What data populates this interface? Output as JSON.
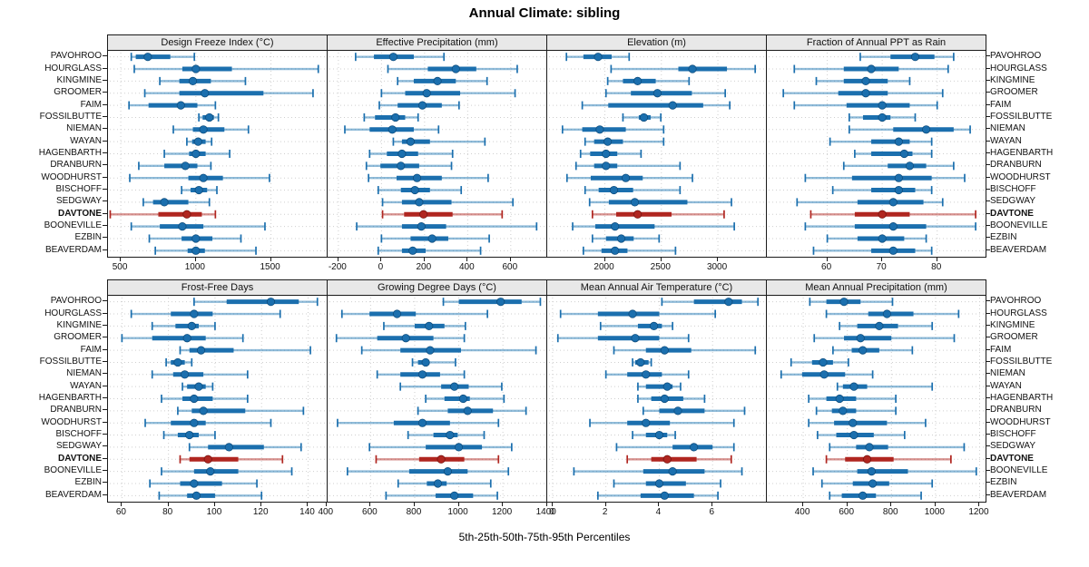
{
  "title": "Annual Climate: sibling",
  "x_axis_title": "5th-25th-50th-75th-95th Percentiles",
  "highlight_station": "DAVTONE",
  "colors": {
    "blue": "#1B6FAE",
    "blue_light": "rgba(31,119,180,0.5)",
    "blue_dark": "#0E4D7E",
    "red": "#B02620",
    "red_light": "rgba(176,38,32,0.5)",
    "red_dark": "#7A1410",
    "header_bg": "#E8E8E8",
    "grid": "#CFCFCF",
    "border": "#1A1A1A"
  },
  "chart_data": {
    "type": "dotplot-percentiles",
    "percentiles": [
      5,
      25,
      50,
      75,
      95
    ],
    "stations": [
      "PAVOHROO",
      "HOURGLASS",
      "KINGMINE",
      "GROOMER",
      "FAIM",
      "FOSSILBUTTE",
      "NIEMAN",
      "WAYAN",
      "HAGENBARTH",
      "DRANBURN",
      "WOODHURST",
      "BISCHOFF",
      "SEDGWAY",
      "DAVTONE",
      "BOONEVILLE",
      "EZBIN",
      "BEAVERDAM"
    ],
    "legend_note": "DAVTONE highlighted in red",
    "panels": [
      {
        "title": "Design Freeze Index (°C)",
        "xlim": [
          415,
          1871
        ],
        "ticks": [
          500,
          1000,
          1500
        ],
        "rows": [
          [
            570,
            600,
            680,
            830,
            990
          ],
          [
            590,
            910,
            1000,
            1240,
            1815
          ],
          [
            760,
            890,
            980,
            1100,
            1330
          ],
          [
            660,
            890,
            1060,
            1450,
            1780
          ],
          [
            555,
            685,
            900,
            1010,
            1130
          ],
          [
            1020,
            1045,
            1090,
            1120,
            1150
          ],
          [
            850,
            980,
            1050,
            1190,
            1350
          ],
          [
            940,
            975,
            1015,
            1065,
            1105
          ],
          [
            790,
            955,
            1000,
            1065,
            1225
          ],
          [
            620,
            790,
            930,
            1010,
            1100
          ],
          [
            560,
            950,
            1050,
            1180,
            1490
          ],
          [
            905,
            965,
            1020,
            1075,
            1140
          ],
          [
            650,
            715,
            790,
            950,
            1090
          ],
          [
            430,
            750,
            940,
            1040,
            1130
          ],
          [
            570,
            760,
            910,
            1050,
            1460
          ],
          [
            690,
            905,
            1000,
            1110,
            1300
          ],
          [
            730,
            945,
            1000,
            1060,
            1400
          ]
        ]
      },
      {
        "title": "Effective Precipitation (mm)",
        "xlim": [
          -250,
          765
        ],
        "ticks": [
          -200,
          0,
          200,
          400,
          600
        ],
        "rows": [
          [
            -120,
            -35,
            55,
            150,
            290
          ],
          [
            30,
            215,
            345,
            440,
            630
          ],
          [
            75,
            150,
            260,
            345,
            490
          ],
          [
            0,
            110,
            210,
            365,
            620
          ],
          [
            -10,
            75,
            190,
            280,
            360
          ],
          [
            -80,
            -30,
            65,
            110,
            170
          ],
          [
            -170,
            -55,
            50,
            150,
            265
          ],
          [
            55,
            95,
            135,
            225,
            480
          ],
          [
            -55,
            25,
            95,
            170,
            330
          ],
          [
            -70,
            -5,
            90,
            175,
            325
          ],
          [
            -60,
            70,
            165,
            280,
            495
          ],
          [
            -15,
            90,
            155,
            225,
            370
          ],
          [
            5,
            95,
            175,
            325,
            610
          ],
          [
            5,
            105,
            195,
            330,
            560
          ],
          [
            -115,
            95,
            185,
            300,
            720
          ],
          [
            0,
            135,
            235,
            310,
            500
          ],
          [
            -15,
            95,
            145,
            205,
            460
          ]
        ]
      },
      {
        "title": "Elevation (m)",
        "xlim": [
          1490,
          3425
        ],
        "ticks": [
          2000,
          2500,
          3000
        ],
        "rows": [
          [
            1660,
            1810,
            1940,
            2060,
            2215
          ],
          [
            2055,
            2650,
            2775,
            3080,
            3330
          ],
          [
            2025,
            2160,
            2290,
            2450,
            2745
          ],
          [
            2010,
            2230,
            2465,
            2770,
            3065
          ],
          [
            1800,
            2030,
            2600,
            2870,
            3105
          ],
          [
            2160,
            2300,
            2345,
            2405,
            2495
          ],
          [
            1625,
            1800,
            1955,
            2185,
            2520
          ],
          [
            1825,
            1905,
            2025,
            2160,
            2520
          ],
          [
            1785,
            1870,
            2010,
            2110,
            2320
          ],
          [
            1745,
            1905,
            2010,
            2110,
            2665
          ],
          [
            1665,
            1875,
            2185,
            2335,
            2775
          ],
          [
            1825,
            1945,
            2080,
            2250,
            2665
          ],
          [
            1865,
            2035,
            2265,
            2730,
            3120
          ],
          [
            1890,
            2100,
            2290,
            2590,
            3055
          ],
          [
            1715,
            1915,
            2090,
            2440,
            3145
          ],
          [
            1890,
            2010,
            2145,
            2255,
            2480
          ],
          [
            1810,
            1970,
            2090,
            2200,
            2625
          ]
        ]
      },
      {
        "title": "Fraction of Annual PPT as Rain",
        "xlim": [
          49,
          88.8
        ],
        "ticks": [
          60,
          70,
          80
        ],
        "rows": [
          [
            66,
            71.5,
            76,
            79.5,
            83
          ],
          [
            54,
            63,
            68,
            73,
            82
          ],
          [
            58,
            63,
            67,
            71,
            75
          ],
          [
            52,
            62,
            67,
            71,
            81
          ],
          [
            54,
            63.5,
            70,
            75,
            80
          ],
          [
            64,
            66.5,
            70,
            71.5,
            76
          ],
          [
            64,
            72,
            78,
            83,
            86
          ],
          [
            60.5,
            68,
            73,
            75,
            79
          ],
          [
            65,
            68,
            74,
            75.5,
            79
          ],
          [
            63,
            71,
            75,
            78,
            83
          ],
          [
            56,
            64.5,
            73,
            79,
            85
          ],
          [
            61,
            68,
            73,
            76,
            79
          ],
          [
            54.5,
            65.5,
            72,
            77.5,
            81
          ],
          [
            57,
            65,
            70,
            75,
            87
          ],
          [
            56,
            65,
            72,
            78,
            87
          ],
          [
            60,
            65.5,
            70,
            74,
            78
          ],
          [
            57.5,
            68,
            72,
            76,
            79
          ]
        ]
      },
      {
        "title": "Frost-Free Days",
        "xlim": [
          54,
          148
        ],
        "ticks": [
          60,
          80,
          100,
          120,
          140
        ],
        "rows": [
          [
            91,
            105,
            124,
            136,
            144
          ],
          [
            64,
            81,
            91,
            99,
            128
          ],
          [
            73,
            83,
            90,
            93,
            100
          ],
          [
            60,
            73,
            88,
            96,
            112
          ],
          [
            85,
            89,
            94,
            108,
            141
          ],
          [
            79,
            81,
            84,
            87,
            90
          ],
          [
            73,
            82,
            87,
            95,
            114
          ],
          [
            86,
            88,
            93,
            96,
            99
          ],
          [
            77,
            86,
            91,
            99,
            114
          ],
          [
            84,
            90,
            95,
            113,
            138
          ],
          [
            70,
            81,
            91,
            96,
            124
          ],
          [
            78,
            84,
            89,
            93,
            100
          ],
          [
            89,
            97,
            106,
            121,
            137
          ],
          [
            85,
            89,
            97,
            110,
            129
          ],
          [
            77,
            91,
            98,
            110,
            133
          ],
          [
            72,
            85,
            91,
            103,
            118
          ],
          [
            76,
            88,
            92,
            100,
            120
          ]
        ]
      },
      {
        "title": "Growing Degree Days (°C)",
        "xlim": [
          405,
          1397
        ],
        "ticks": [
          400,
          600,
          800,
          1000,
          1200,
          1400
        ],
        "rows": [
          [
            930,
            1000,
            1190,
            1285,
            1370
          ],
          [
            470,
            595,
            720,
            805,
            1130
          ],
          [
            660,
            800,
            865,
            935,
            1030
          ],
          [
            445,
            630,
            760,
            885,
            1025
          ],
          [
            560,
            735,
            870,
            1010,
            1350
          ],
          [
            790,
            815,
            850,
            865,
            985
          ],
          [
            630,
            735,
            835,
            915,
            1025
          ],
          [
            735,
            920,
            980,
            1045,
            1195
          ],
          [
            850,
            935,
            1020,
            1050,
            1205
          ],
          [
            815,
            950,
            1040,
            1155,
            1305
          ],
          [
            450,
            705,
            835,
            960,
            1180
          ],
          [
            770,
            885,
            960,
            995,
            1115
          ],
          [
            595,
            850,
            1000,
            1105,
            1240
          ],
          [
            625,
            820,
            920,
            1025,
            1180
          ],
          [
            495,
            775,
            950,
            1040,
            1225
          ],
          [
            725,
            855,
            905,
            945,
            1145
          ],
          [
            670,
            895,
            980,
            1065,
            1175
          ]
        ]
      },
      {
        "title": "Mean Annual Air Temperature (°C)",
        "xlim": [
          -0.2,
          8.0
        ],
        "ticks": [
          0,
          2,
          4,
          6
        ],
        "rows": [
          [
            4.1,
            5.3,
            6.6,
            7.1,
            7.7
          ],
          [
            0.3,
            1.7,
            3.0,
            4.0,
            6.1
          ],
          [
            1.8,
            3.2,
            3.8,
            4.1,
            4.5
          ],
          [
            0.2,
            1.7,
            3.1,
            4.0,
            5.1
          ],
          [
            2.3,
            3.5,
            4.2,
            5.2,
            7.6
          ],
          [
            3.0,
            3.1,
            3.3,
            3.6,
            3.7
          ],
          [
            2.0,
            2.8,
            3.5,
            4.1,
            5.1
          ],
          [
            3.2,
            3.5,
            4.3,
            4.5,
            4.8
          ],
          [
            3.2,
            3.7,
            4.2,
            4.9,
            5.7
          ],
          [
            3.4,
            4.0,
            4.7,
            5.7,
            7.2
          ],
          [
            1.4,
            2.8,
            3.5,
            4.4,
            6.8
          ],
          [
            3.0,
            3.5,
            4.0,
            4.3,
            4.6
          ],
          [
            2.4,
            4.5,
            5.3,
            6.0,
            6.8
          ],
          [
            2.8,
            3.7,
            4.3,
            5.4,
            6.7
          ],
          [
            0.8,
            3.4,
            4.5,
            5.7,
            7.1
          ],
          [
            2.3,
            3.5,
            4.0,
            5.0,
            6.3
          ],
          [
            1.7,
            3.3,
            4.2,
            5.3,
            6.2
          ]
        ]
      },
      {
        "title": "Mean Annual Precipitation (mm)",
        "xlim": [
          235,
          1227
        ],
        "ticks": [
          400,
          600,
          800,
          1000,
          1200
        ],
        "rows": [
          [
            430,
            505,
            585,
            660,
            805
          ],
          [
            505,
            695,
            780,
            900,
            1105
          ],
          [
            565,
            645,
            745,
            830,
            985
          ],
          [
            450,
            585,
            660,
            800,
            1085
          ],
          [
            535,
            620,
            670,
            745,
            895
          ],
          [
            345,
            440,
            490,
            535,
            605
          ],
          [
            300,
            395,
            495,
            590,
            715
          ],
          [
            555,
            580,
            630,
            690,
            985
          ],
          [
            425,
            505,
            565,
            640,
            820
          ],
          [
            460,
            530,
            580,
            640,
            820
          ],
          [
            425,
            540,
            625,
            780,
            955
          ],
          [
            465,
            550,
            630,
            720,
            860
          ],
          [
            520,
            640,
            700,
            785,
            1130
          ],
          [
            505,
            590,
            690,
            810,
            1070
          ],
          [
            445,
            645,
            710,
            875,
            1185
          ],
          [
            485,
            625,
            715,
            790,
            985
          ],
          [
            520,
            575,
            670,
            730,
            935
          ]
        ]
      }
    ]
  }
}
